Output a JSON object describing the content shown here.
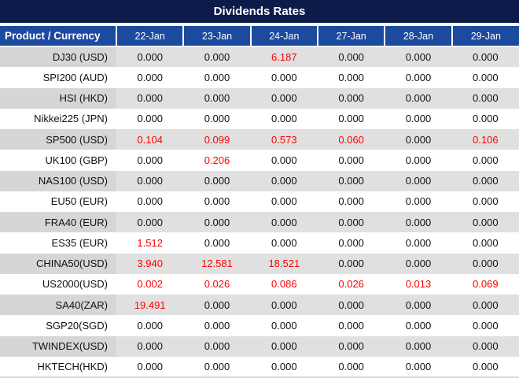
{
  "colors": {
    "title_bg": "#0d1b4a",
    "header_bg": "#1c4a9e",
    "header_text": "#ffffff",
    "label_stripe": "#d6d6d6",
    "data_stripe": "#e0e0e0",
    "value_text": "#111111",
    "red": "#ff0000",
    "bottom_border": "#d9d9d9"
  },
  "chart_data": {
    "type": "table",
    "title": "Dividends Rates",
    "columns": [
      "Product / Currency",
      "22-Jan",
      "23-Jan",
      "24-Jan",
      "27-Jan",
      "28-Jan",
      "29-Jan"
    ],
    "rows": [
      {
        "label": "DJ30 (USD)",
        "values": [
          "0.000",
          "0.000",
          "6.187",
          "0.000",
          "0.000",
          "0.000"
        ],
        "red": [
          false,
          false,
          true,
          false,
          false,
          false
        ]
      },
      {
        "label": "SPI200 (AUD)",
        "values": [
          "0.000",
          "0.000",
          "0.000",
          "0.000",
          "0.000",
          "0.000"
        ],
        "red": [
          false,
          false,
          false,
          false,
          false,
          false
        ]
      },
      {
        "label": "HSI (HKD)",
        "values": [
          "0.000",
          "0.000",
          "0.000",
          "0.000",
          "0.000",
          "0.000"
        ],
        "red": [
          false,
          false,
          false,
          false,
          false,
          false
        ]
      },
      {
        "label": "Nikkei225 (JPN)",
        "values": [
          "0.000",
          "0.000",
          "0.000",
          "0.000",
          "0.000",
          "0.000"
        ],
        "red": [
          false,
          false,
          false,
          false,
          false,
          false
        ]
      },
      {
        "label": "SP500 (USD)",
        "values": [
          "0.104",
          "0.099",
          "0.573",
          "0.060",
          "0.000",
          "0.106"
        ],
        "red": [
          true,
          true,
          true,
          true,
          false,
          true
        ]
      },
      {
        "label": "UK100 (GBP)",
        "values": [
          "0.000",
          "0.206",
          "0.000",
          "0.000",
          "0.000",
          "0.000"
        ],
        "red": [
          false,
          true,
          false,
          false,
          false,
          false
        ]
      },
      {
        "label": "NAS100 (USD)",
        "values": [
          "0.000",
          "0.000",
          "0.000",
          "0.000",
          "0.000",
          "0.000"
        ],
        "red": [
          false,
          false,
          false,
          false,
          false,
          false
        ]
      },
      {
        "label": "EU50 (EUR)",
        "values": [
          "0.000",
          "0.000",
          "0.000",
          "0.000",
          "0.000",
          "0.000"
        ],
        "red": [
          false,
          false,
          false,
          false,
          false,
          false
        ]
      },
      {
        "label": "FRA40 (EUR)",
        "values": [
          "0.000",
          "0.000",
          "0.000",
          "0.000",
          "0.000",
          "0.000"
        ],
        "red": [
          false,
          false,
          false,
          false,
          false,
          false
        ]
      },
      {
        "label": "ES35 (EUR)",
        "values": [
          "1.512",
          "0.000",
          "0.000",
          "0.000",
          "0.000",
          "0.000"
        ],
        "red": [
          true,
          false,
          false,
          false,
          false,
          false
        ]
      },
      {
        "label": "CHINA50(USD)",
        "values": [
          "3.940",
          "12.581",
          "18.521",
          "0.000",
          "0.000",
          "0.000"
        ],
        "red": [
          true,
          true,
          true,
          false,
          false,
          false
        ]
      },
      {
        "label": "US2000(USD)",
        "values": [
          "0.002",
          "0.026",
          "0.086",
          "0.026",
          "0.013",
          "0.069"
        ],
        "red": [
          true,
          true,
          true,
          true,
          true,
          true
        ]
      },
      {
        "label": "SA40(ZAR)",
        "values": [
          "19.491",
          "0.000",
          "0.000",
          "0.000",
          "0.000",
          "0.000"
        ],
        "red": [
          true,
          false,
          false,
          false,
          false,
          false
        ]
      },
      {
        "label": "SGP20(SGD)",
        "values": [
          "0.000",
          "0.000",
          "0.000",
          "0.000",
          "0.000",
          "0.000"
        ],
        "red": [
          false,
          false,
          false,
          false,
          false,
          false
        ]
      },
      {
        "label": "TWINDEX(USD)",
        "values": [
          "0.000",
          "0.000",
          "0.000",
          "0.000",
          "0.000",
          "0.000"
        ],
        "red": [
          false,
          false,
          false,
          false,
          false,
          false
        ]
      },
      {
        "label": "HKTECH(HKD)",
        "values": [
          "0.000",
          "0.000",
          "0.000",
          "0.000",
          "0.000",
          "0.000"
        ],
        "red": [
          false,
          false,
          false,
          false,
          false,
          false
        ]
      }
    ]
  }
}
